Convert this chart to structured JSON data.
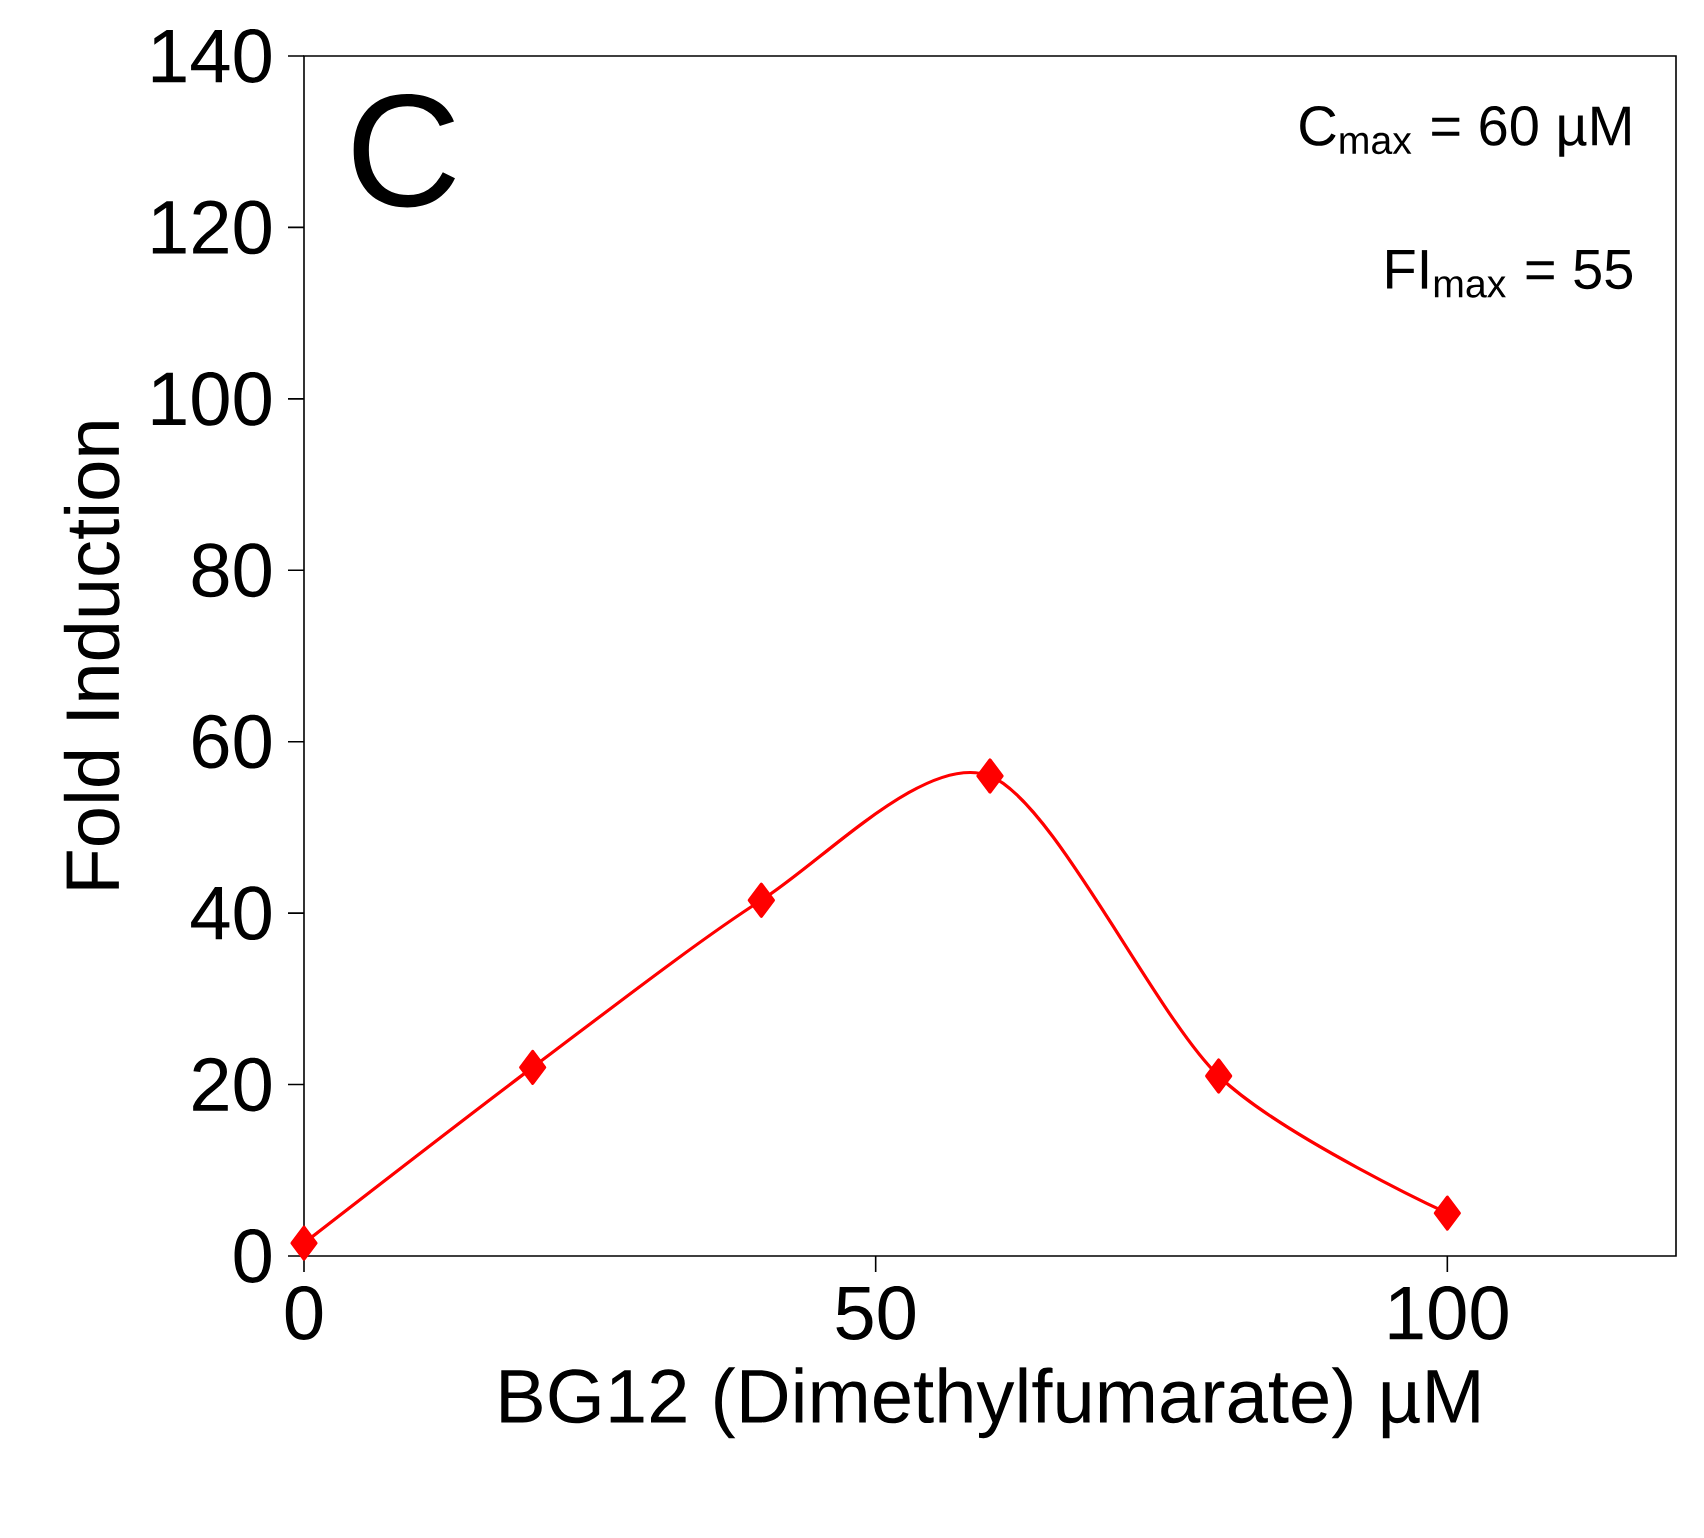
{
  "chart_data": {
    "type": "line",
    "xlabel": "BG12 (Dimethylfumarate) µM",
    "ylabel": "Fold Induction",
    "annotations": [
      "C",
      "C$_{max}$ = 60 µM",
      "FI$_{max}$ = 55"
    ],
    "x": [
      0,
      20,
      40,
      60,
      80,
      100
    ],
    "series": [
      {
        "color": "#ff0000",
        "values": [
          1.5,
          22,
          41.5,
          56,
          21,
          5
        ]
      }
    ],
    "xlim": [
      0,
      120
    ],
    "xticks": [
      0,
      50,
      100
    ],
    "ylim": [
      0,
      140
    ],
    "yticks": [
      0,
      20,
      40,
      60,
      80,
      100,
      120,
      140
    ],
    "grid": false,
    "marker": "diamond",
    "line_style": "solid"
  }
}
